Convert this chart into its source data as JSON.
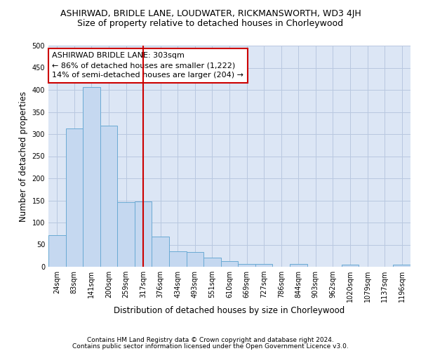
{
  "title": "ASHIRWAD, BRIDLE LANE, LOUDWATER, RICKMANSWORTH, WD3 4JH",
  "subtitle": "Size of property relative to detached houses in Chorleywood",
  "xlabel": "Distribution of detached houses by size in Chorleywood",
  "ylabel": "Number of detached properties",
  "bin_labels": [
    "24sqm",
    "83sqm",
    "141sqm",
    "200sqm",
    "259sqm",
    "317sqm",
    "376sqm",
    "434sqm",
    "493sqm",
    "551sqm",
    "610sqm",
    "669sqm",
    "727sqm",
    "786sqm",
    "844sqm",
    "903sqm",
    "962sqm",
    "1020sqm",
    "1079sqm",
    "1137sqm",
    "1196sqm"
  ],
  "bar_values": [
    72,
    313,
    407,
    319,
    146,
    148,
    68,
    35,
    34,
    20,
    13,
    7,
    7,
    0,
    7,
    0,
    0,
    5,
    0,
    0,
    5
  ],
  "bar_color": "#c5d8f0",
  "bar_edge_color": "#6aaad4",
  "reference_line_x": 5,
  "reference_line_color": "#cc0000",
  "annotation_line1": "ASHIRWAD BRIDLE LANE: 303sqm",
  "annotation_line2": "← 86% of detached houses are smaller (1,222)",
  "annotation_line3": "14% of semi-detached houses are larger (204) →",
  "annotation_box_color": "#ffffff",
  "annotation_box_edge_color": "#cc0000",
  "ylim": [
    0,
    500
  ],
  "yticks": [
    0,
    50,
    100,
    150,
    200,
    250,
    300,
    350,
    400,
    450,
    500
  ],
  "footer_line1": "Contains HM Land Registry data © Crown copyright and database right 2024.",
  "footer_line2": "Contains public sector information licensed under the Open Government Licence v3.0.",
  "bg_color": "#ffffff",
  "plot_bg_color": "#dce6f5",
  "grid_color": "#b8c8e0",
  "title_fontsize": 9,
  "subtitle_fontsize": 9,
  "axis_label_fontsize": 8.5,
  "tick_fontsize": 7,
  "annotation_fontsize": 8,
  "footer_fontsize": 6.5
}
